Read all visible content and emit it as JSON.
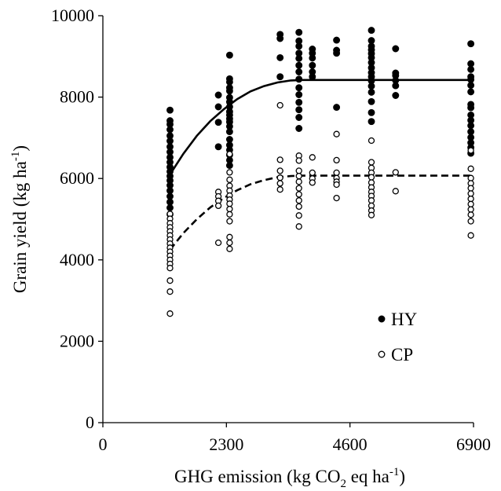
{
  "chart_data": {
    "type": "scatter",
    "xlabel": {
      "prefix": "GHG emission (kg CO",
      "sub": "2",
      "middle": " eq ha",
      "sup": "-1",
      "suffix": ")"
    },
    "ylabel": {
      "prefix": "Grain yield (kg ha",
      "sup": "-1",
      "suffix": ")"
    },
    "xlim": [
      0,
      6900
    ],
    "ylim": [
      0,
      10000
    ],
    "xticks": [
      0,
      2300,
      4600,
      6900
    ],
    "xtick_labels": [
      "0",
      "2300",
      "4600",
      "6900"
    ],
    "yticks": [
      0,
      2000,
      4000,
      6000,
      8000,
      10000
    ],
    "ytick_labels": [
      "0",
      "2000",
      "4000",
      "6000",
      "8000",
      "10000"
    ],
    "grid": false,
    "legend_position": "lower-right",
    "series": [
      {
        "name": "HY",
        "marker": "filled-circle",
        "color": "#000000",
        "points": [
          [
            1250,
            7680
          ],
          [
            1250,
            7420
          ],
          [
            1250,
            7330
          ],
          [
            1250,
            7200
          ],
          [
            1250,
            7050
          ],
          [
            1250,
            6920
          ],
          [
            1250,
            6780
          ],
          [
            1250,
            6650
          ],
          [
            1250,
            6520
          ],
          [
            1250,
            6400
          ],
          [
            1250,
            6280
          ],
          [
            1250,
            6170
          ],
          [
            1250,
            6060
          ],
          [
            1250,
            5950
          ],
          [
            1250,
            5830
          ],
          [
            1250,
            5700
          ],
          [
            1250,
            5560
          ],
          [
            1250,
            5420
          ],
          [
            1250,
            5280
          ],
          [
            1250,
            5120
          ],
          [
            2150,
            8050
          ],
          [
            2150,
            7760
          ],
          [
            2150,
            7380
          ],
          [
            2150,
            6780
          ],
          [
            2360,
            9030
          ],
          [
            2360,
            8450
          ],
          [
            2360,
            8370
          ],
          [
            2360,
            8230
          ],
          [
            2360,
            8150
          ],
          [
            2360,
            7990
          ],
          [
            2360,
            7880
          ],
          [
            2360,
            7760
          ],
          [
            2360,
            7640
          ],
          [
            2360,
            7560
          ],
          [
            2360,
            7470
          ],
          [
            2360,
            7390
          ],
          [
            2360,
            7280
          ],
          [
            2360,
            7150
          ],
          [
            2360,
            6960
          ],
          [
            2360,
            6820
          ],
          [
            2360,
            6700
          ],
          [
            2360,
            6580
          ],
          [
            2360,
            6450
          ],
          [
            2360,
            6320
          ],
          [
            3300,
            9540
          ],
          [
            3300,
            9440
          ],
          [
            3300,
            8970
          ],
          [
            3300,
            8500
          ],
          [
            3650,
            9590
          ],
          [
            3650,
            9380
          ],
          [
            3650,
            9250
          ],
          [
            3650,
            9080
          ],
          [
            3650,
            8950
          ],
          [
            3650,
            8780
          ],
          [
            3650,
            8620
          ],
          [
            3650,
            8440
          ],
          [
            3650,
            8230
          ],
          [
            3650,
            8060
          ],
          [
            3650,
            7870
          ],
          [
            3650,
            7690
          ],
          [
            3650,
            7500
          ],
          [
            3650,
            7230
          ],
          [
            3900,
            9180
          ],
          [
            3900,
            9080
          ],
          [
            3900,
            8960
          ],
          [
            3900,
            8780
          ],
          [
            3900,
            8620
          ],
          [
            3900,
            8500
          ],
          [
            4350,
            9400
          ],
          [
            4350,
            9150
          ],
          [
            4350,
            9080
          ],
          [
            4350,
            7750
          ],
          [
            5000,
            9640
          ],
          [
            5000,
            9390
          ],
          [
            5000,
            9250
          ],
          [
            5000,
            9160
          ],
          [
            5000,
            9070
          ],
          [
            5000,
            8970
          ],
          [
            5000,
            8850
          ],
          [
            5000,
            8720
          ],
          [
            5000,
            8600
          ],
          [
            5000,
            8500
          ],
          [
            5000,
            8400
          ],
          [
            5000,
            8270
          ],
          [
            5000,
            8120
          ],
          [
            5000,
            7890
          ],
          [
            5000,
            7620
          ],
          [
            5000,
            7400
          ],
          [
            5450,
            9190
          ],
          [
            5450,
            8590
          ],
          [
            5450,
            8530
          ],
          [
            5450,
            8410
          ],
          [
            5450,
            8280
          ],
          [
            5450,
            8040
          ],
          [
            6850,
            9310
          ],
          [
            6850,
            8820
          ],
          [
            6850,
            8680
          ],
          [
            6850,
            8500
          ],
          [
            6850,
            8430
          ],
          [
            6850,
            8290
          ],
          [
            6850,
            8130
          ],
          [
            6850,
            7820
          ],
          [
            6850,
            7740
          ],
          [
            6850,
            7560
          ],
          [
            6850,
            7430
          ],
          [
            6850,
            7300
          ],
          [
            6850,
            7150
          ],
          [
            6850,
            7010
          ],
          [
            6850,
            6880
          ],
          [
            6850,
            6760
          ],
          [
            6850,
            6620
          ]
        ],
        "fit": [
          [
            1250,
            6100
          ],
          [
            1500,
            6610
          ],
          [
            1750,
            7050
          ],
          [
            2000,
            7410
          ],
          [
            2250,
            7700
          ],
          [
            2500,
            7950
          ],
          [
            2750,
            8140
          ],
          [
            3000,
            8270
          ],
          [
            3250,
            8360
          ],
          [
            3500,
            8410
          ],
          [
            3700,
            8420
          ],
          [
            4000,
            8420
          ],
          [
            5000,
            8420
          ],
          [
            6000,
            8420
          ],
          [
            6850,
            8420
          ]
        ],
        "fit_style": "solid"
      },
      {
        "name": "CP",
        "marker": "open-circle",
        "color": "#000000",
        "points": [
          [
            1250,
            5130
          ],
          [
            1250,
            5010
          ],
          [
            1250,
            4900
          ],
          [
            1250,
            4800
          ],
          [
            1250,
            4700
          ],
          [
            1250,
            4600
          ],
          [
            1250,
            4500
          ],
          [
            1250,
            4400
          ],
          [
            1250,
            4300
          ],
          [
            1250,
            4200
          ],
          [
            1250,
            4100
          ],
          [
            1250,
            4000
          ],
          [
            1250,
            3900
          ],
          [
            1250,
            3800
          ],
          [
            1250,
            3490
          ],
          [
            1250,
            3220
          ],
          [
            1250,
            2680
          ],
          [
            2150,
            5670
          ],
          [
            2150,
            5560
          ],
          [
            2150,
            5450
          ],
          [
            2150,
            5330
          ],
          [
            2150,
            4420
          ],
          [
            2360,
            6600
          ],
          [
            2360,
            6150
          ],
          [
            2360,
            5970
          ],
          [
            2360,
            5820
          ],
          [
            2360,
            5700
          ],
          [
            2360,
            5580
          ],
          [
            2360,
            5480
          ],
          [
            2360,
            5380
          ],
          [
            2360,
            5250
          ],
          [
            2360,
            5120
          ],
          [
            2360,
            4950
          ],
          [
            2360,
            4560
          ],
          [
            2360,
            4420
          ],
          [
            2360,
            4270
          ],
          [
            3300,
            7800
          ],
          [
            3300,
            6460
          ],
          [
            3300,
            6190
          ],
          [
            3300,
            6020
          ],
          [
            3300,
            5880
          ],
          [
            3300,
            5730
          ],
          [
            3650,
            6560
          ],
          [
            3650,
            6440
          ],
          [
            3650,
            6190
          ],
          [
            3650,
            6060
          ],
          [
            3650,
            5920
          ],
          [
            3650,
            5760
          ],
          [
            3650,
            5610
          ],
          [
            3650,
            5460
          ],
          [
            3650,
            5310
          ],
          [
            3650,
            5090
          ],
          [
            3650,
            4820
          ],
          [
            3900,
            6520
          ],
          [
            3900,
            6140
          ],
          [
            3900,
            6000
          ],
          [
            3900,
            5900
          ],
          [
            4350,
            7090
          ],
          [
            4350,
            6450
          ],
          [
            4350,
            6140
          ],
          [
            4350,
            6010
          ],
          [
            4350,
            5920
          ],
          [
            4350,
            5850
          ],
          [
            4350,
            5520
          ],
          [
            5000,
            6930
          ],
          [
            5000,
            6400
          ],
          [
            5000,
            6260
          ],
          [
            5000,
            6140
          ],
          [
            5000,
            6030
          ],
          [
            5000,
            5900
          ],
          [
            5000,
            5780
          ],
          [
            5000,
            5670
          ],
          [
            5000,
            5570
          ],
          [
            5000,
            5460
          ],
          [
            5000,
            5330
          ],
          [
            5000,
            5210
          ],
          [
            5000,
            5100
          ],
          [
            5450,
            6150
          ],
          [
            5450,
            5690
          ],
          [
            6850,
            6690
          ],
          [
            6850,
            6240
          ],
          [
            6850,
            6010
          ],
          [
            6850,
            5880
          ],
          [
            6850,
            5760
          ],
          [
            6850,
            5630
          ],
          [
            6850,
            5500
          ],
          [
            6850,
            5370
          ],
          [
            6850,
            5240
          ],
          [
            6850,
            5110
          ],
          [
            6850,
            4950
          ],
          [
            6850,
            4600
          ]
        ],
        "fit": [
          [
            1250,
            4250
          ],
          [
            1500,
            4660
          ],
          [
            1750,
            5000
          ],
          [
            2000,
            5290
          ],
          [
            2250,
            5520
          ],
          [
            2500,
            5710
          ],
          [
            2750,
            5860
          ],
          [
            3000,
            5960
          ],
          [
            3250,
            6030
          ],
          [
            3500,
            6060
          ],
          [
            3650,
            6070
          ],
          [
            4000,
            6070
          ],
          [
            5000,
            6070
          ],
          [
            6000,
            6070
          ],
          [
            6850,
            6070
          ]
        ],
        "fit_style": "dashed"
      }
    ]
  }
}
